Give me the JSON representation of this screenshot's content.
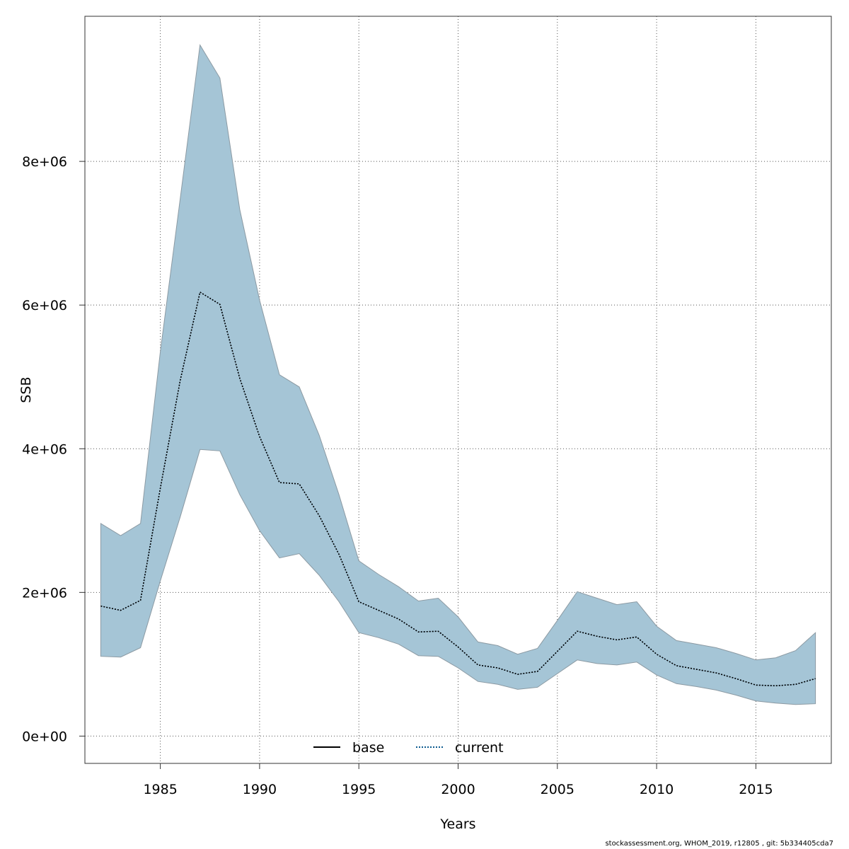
{
  "chart_data": {
    "type": "area",
    "xlabel": "Years",
    "ylabel": "SSB",
    "xlim": [
      1981.2,
      2018.8
    ],
    "ylim": [
      -380000,
      10020000
    ],
    "x_ticks": [
      1985,
      1990,
      1995,
      2000,
      2005,
      2010,
      2015
    ],
    "x_tick_labels": [
      "1985",
      "1990",
      "1995",
      "2000",
      "2005",
      "2010",
      "2015"
    ],
    "y_ticks": [
      0,
      2000000,
      4000000,
      6000000,
      8000000
    ],
    "y_tick_labels": [
      "0e+00",
      "2e+06",
      "4e+06",
      "6e+06",
      "8e+06"
    ],
    "grid": true,
    "legend_position": "bottom-center",
    "legend": [
      {
        "label": "base",
        "style": "solid",
        "color": "#000000"
      },
      {
        "label": "current",
        "style": "dotted",
        "color": "#0d5b8f"
      }
    ],
    "band_color": "#a5c5d6",
    "band_edge_color": "#8c9aa3",
    "x": [
      1982,
      1983,
      1984,
      1985,
      1986,
      1987,
      1988,
      1989,
      1990,
      1991,
      1992,
      1993,
      1994,
      1995,
      1996,
      1997,
      1998,
      1999,
      2000,
      2001,
      2002,
      2003,
      2004,
      2005,
      2006,
      2007,
      2008,
      2009,
      2010,
      2011,
      2012,
      2013,
      2014,
      2015,
      2016,
      2017,
      2018
    ],
    "series": [
      {
        "name": "base",
        "style": "solid",
        "values": [
          1810000,
          1750000,
          1890000,
          3450000,
          4950000,
          6180000,
          6010000,
          4980000,
          4170000,
          3530000,
          3510000,
          3070000,
          2530000,
          1870000,
          1750000,
          1630000,
          1450000,
          1460000,
          1240000,
          990000,
          950000,
          860000,
          900000,
          1180000,
          1460000,
          1390000,
          1340000,
          1380000,
          1140000,
          980000,
          930000,
          880000,
          800000,
          710000,
          700000,
          720000,
          800000
        ]
      },
      {
        "name": "current",
        "style": "dotted",
        "values": [
          1810000,
          1750000,
          1890000,
          3450000,
          4950000,
          6180000,
          6010000,
          4980000,
          4170000,
          3530000,
          3510000,
          3070000,
          2530000,
          1870000,
          1750000,
          1630000,
          1450000,
          1460000,
          1240000,
          990000,
          950000,
          860000,
          900000,
          1180000,
          1460000,
          1390000,
          1340000,
          1380000,
          1140000,
          980000,
          930000,
          880000,
          800000,
          710000,
          700000,
          720000,
          800000
        ],
        "lower": [
          1110000,
          1100000,
          1230000,
          2160000,
          3050000,
          3990000,
          3970000,
          3360000,
          2860000,
          2480000,
          2540000,
          2240000,
          1870000,
          1440000,
          1370000,
          1280000,
          1120000,
          1110000,
          950000,
          760000,
          720000,
          650000,
          680000,
          870000,
          1060000,
          1010000,
          990000,
          1030000,
          850000,
          730000,
          690000,
          640000,
          570000,
          490000,
          460000,
          440000,
          450000
        ],
        "upper": [
          2960000,
          2790000,
          2960000,
          5350000,
          7480000,
          9620000,
          9160000,
          7330000,
          6070000,
          5030000,
          4860000,
          4190000,
          3360000,
          2440000,
          2250000,
          2080000,
          1880000,
          1920000,
          1660000,
          1310000,
          1260000,
          1140000,
          1220000,
          1610000,
          2010000,
          1920000,
          1830000,
          1870000,
          1530000,
          1330000,
          1280000,
          1230000,
          1150000,
          1060000,
          1090000,
          1190000,
          1440000
        ]
      }
    ]
  },
  "footer": "stockassessment.org, WHOM_2019, r12805 , git: 5b334405cda7"
}
